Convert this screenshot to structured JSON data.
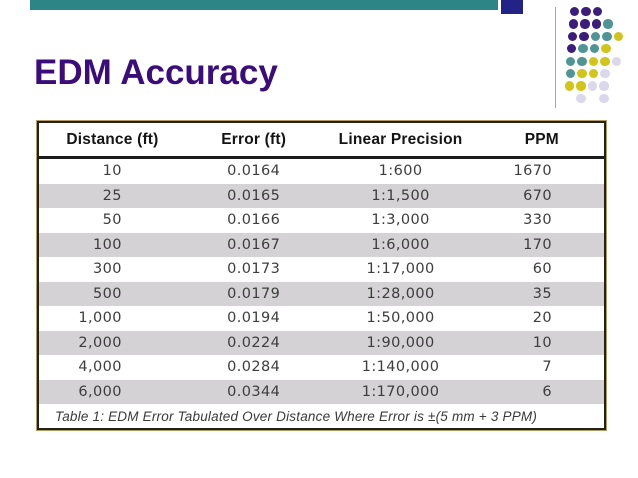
{
  "slide": {
    "title": "EDM Accuracy",
    "title_color": "#3a0d7a"
  },
  "decor": {
    "teal_bar_color": "#2e8585",
    "navy_square_color": "#232387",
    "divider_line_color": "#a6a6a6",
    "dot_colors": {
      "P": "#3b1d7c",
      "T": "#4f9595",
      "Y": "#d1c51a",
      "L": "#dbd8ec"
    },
    "dot_rows": [
      {
        "indent": 5,
        "dots": [
          "P",
          "P",
          "P"
        ]
      },
      {
        "indent": 4,
        "dots": [
          "P",
          "P",
          "P",
          "T"
        ]
      },
      {
        "indent": 3,
        "dots": [
          "P",
          "P",
          "T",
          "T",
          "Y"
        ]
      },
      {
        "indent": 2,
        "dots": [
          "P",
          "T",
          "T",
          "Y"
        ]
      },
      {
        "indent": 1,
        "dots": [
          "T",
          "T",
          "Y",
          "Y",
          "L"
        ]
      },
      {
        "indent": 1,
        "dots": [
          "T",
          "Y",
          "Y",
          "L"
        ]
      },
      {
        "indent": 0,
        "dots": [
          "Y",
          "Y",
          "L",
          "L"
        ]
      },
      {
        "indent": 0,
        "dots": [
          null,
          "L",
          null,
          "L"
        ]
      }
    ]
  },
  "table": {
    "stripe_color": "#d4d2d4",
    "headers": [
      "Distance (ft)",
      "Error (ft)",
      "Linear Precision",
      "PPM"
    ],
    "rows": [
      [
        "10",
        "0.0164",
        "1:600",
        "1670"
      ],
      [
        "25",
        "0.0165",
        "1:1,500",
        "670"
      ],
      [
        "50",
        "0.0166",
        "1:3,000",
        "330"
      ],
      [
        "100",
        "0.0167",
        "1:6,000",
        "170"
      ],
      [
        "300",
        "0.0173",
        "1:17,000",
        "60"
      ],
      [
        "500",
        "0.0179",
        "1:28,000",
        "35"
      ],
      [
        "1,000",
        "0.0194",
        "1:50,000",
        "20"
      ],
      [
        "2,000",
        "0.0224",
        "1:90,000",
        "10"
      ],
      [
        "4,000",
        "0.0284",
        "1:140,000",
        "7"
      ],
      [
        "6,000",
        "0.0344",
        "1:170,000",
        "6"
      ]
    ],
    "caption": "Table 1: EDM Error Tabulated Over Distance Where Error is ±(5 mm + 3 PPM)"
  }
}
